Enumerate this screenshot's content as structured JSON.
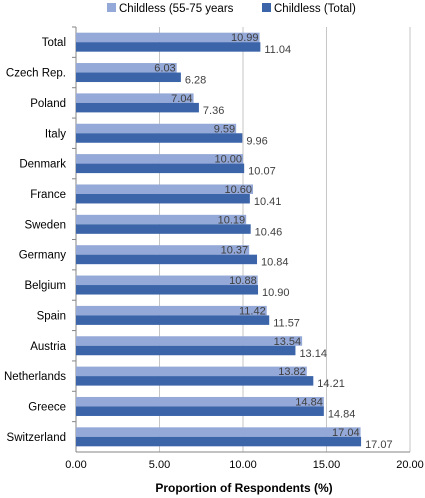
{
  "chart_data": {
    "type": "bar",
    "orientation": "horizontal",
    "categories": [
      "Total",
      "Czech Rep.",
      "Poland",
      "Italy",
      "Denmark",
      "France",
      "Sweden",
      "Germany",
      "Belgium",
      "Spain",
      "Austria",
      "Netherlands",
      "Greece",
      "Switzerland"
    ],
    "series": [
      {
        "name": "Childless (55-75 years",
        "color": "#95a9d8",
        "values": [
          10.99,
          6.03,
          7.04,
          9.59,
          10.0,
          10.6,
          10.19,
          10.37,
          10.88,
          11.42,
          13.54,
          13.82,
          14.84,
          17.04
        ],
        "labels": [
          "10.99",
          "6.03",
          "7.04",
          "9.59",
          "10.00",
          "10.60",
          "10.19",
          "10.37",
          "10.88",
          "11.42",
          "13.54",
          "13.82",
          "14.84",
          "17.04"
        ]
      },
      {
        "name": "Childless (Total)",
        "color": "#3b64a9",
        "values": [
          11.04,
          6.28,
          7.36,
          9.96,
          10.07,
          10.41,
          10.46,
          10.84,
          10.9,
          11.57,
          13.14,
          14.21,
          14.84,
          17.07
        ],
        "labels": [
          "11.04",
          "6.28",
          "7.36",
          "9.96",
          "10.07",
          "10.41",
          "10.46",
          "10.84",
          "10.90",
          "11.57",
          "13.14",
          "14.21",
          "14.84",
          "17.07"
        ]
      }
    ],
    "xlabel": "Proportion of Respondents (%)",
    "ylabel": "",
    "title": "",
    "xlim": [
      0,
      20
    ],
    "xticks": [
      "0.00",
      "5.00",
      "10.00",
      "15.00",
      "20.00"
    ],
    "grid": "vertical",
    "legend_position": "top"
  }
}
